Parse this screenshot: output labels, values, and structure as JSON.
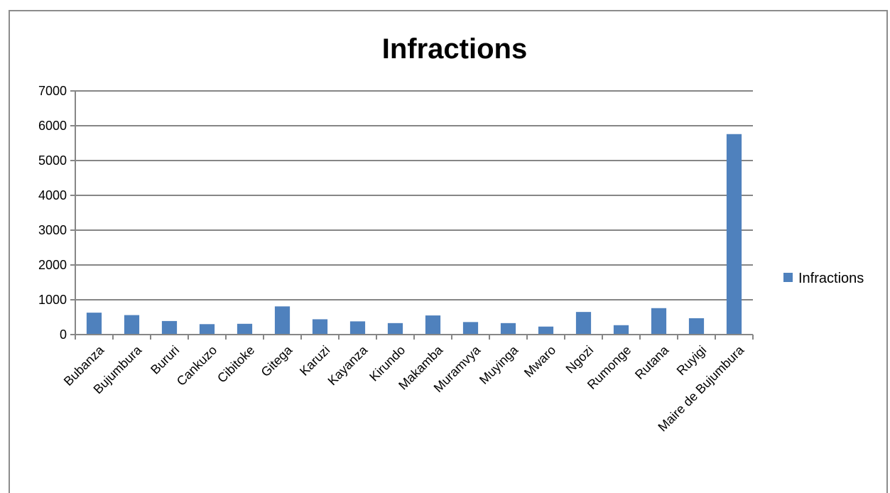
{
  "chart_data": {
    "type": "bar",
    "title": "Infractions",
    "xlabel": "",
    "ylabel": "",
    "ylim": [
      0,
      7000
    ],
    "yticks": [
      0,
      1000,
      2000,
      3000,
      4000,
      5000,
      6000,
      7000
    ],
    "grid": true,
    "legend": "right",
    "color": "#4f81bd",
    "categories": [
      "Bubanza",
      "Bujumbura",
      "Bururi",
      "Cankuzo",
      "Cibitoke",
      "Gitega",
      "Karuzi",
      "Kayanza",
      "Kirundo",
      "Makamba",
      "Muramvya",
      "Muyinga",
      "Mwaro",
      "Ngozi",
      "Rumonge",
      "Rutana",
      "Ruyigi",
      "Maire de Bujumbura"
    ],
    "series": [
      {
        "name": "Infractions",
        "values": [
          630,
          560,
          390,
          300,
          310,
          810,
          440,
          380,
          330,
          550,
          360,
          330,
          230,
          650,
          270,
          760,
          470,
          5760
        ]
      }
    ]
  }
}
